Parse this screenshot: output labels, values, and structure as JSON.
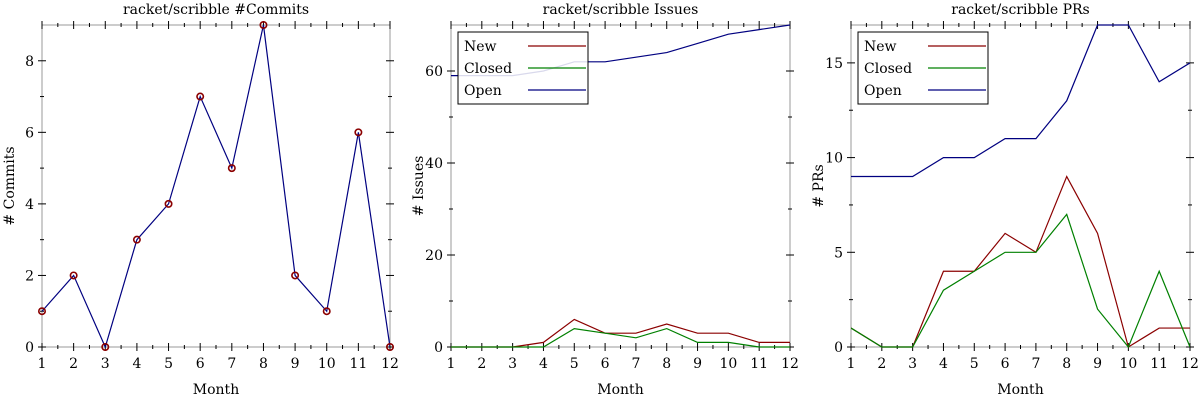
{
  "chart_data": [
    {
      "type": "line",
      "title": "racket/scribble #Commits",
      "xlabel": "Month",
      "ylabel": "# Commits",
      "x": [
        1,
        2,
        3,
        4,
        5,
        6,
        7,
        8,
        9,
        10,
        11,
        12
      ],
      "xlim": [
        1,
        12
      ],
      "ylim": [
        0,
        9
      ],
      "xticks": [
        1,
        2,
        3,
        4,
        5,
        6,
        7,
        8,
        9,
        10,
        11,
        12
      ],
      "yticks": [
        0,
        2,
        4,
        6,
        8
      ],
      "grid": false,
      "legend": null,
      "markers": true,
      "series": [
        {
          "color": "#000080",
          "marker_color": "#8b0000",
          "values": [
            1,
            2,
            0,
            3,
            4,
            7,
            5,
            9,
            2,
            1,
            6,
            0
          ]
        }
      ]
    },
    {
      "type": "line",
      "title": "racket/scribble Issues",
      "xlabel": "Month",
      "ylabel": "# Issues",
      "x": [
        1,
        2,
        3,
        4,
        5,
        6,
        7,
        8,
        9,
        10,
        11,
        12
      ],
      "xlim": [
        1,
        12
      ],
      "ylim": [
        0,
        70
      ],
      "xticks": [
        1,
        2,
        3,
        4,
        5,
        6,
        7,
        8,
        9,
        10,
        11,
        12
      ],
      "yticks": [
        0,
        20,
        40,
        60
      ],
      "grid": false,
      "legend": "top-left",
      "series": [
        {
          "name": "New",
          "color": "#8b0000",
          "values": [
            0,
            0,
            0,
            1,
            6,
            3,
            3,
            5,
            3,
            3,
            1,
            1
          ]
        },
        {
          "name": "Closed",
          "color": "#008000",
          "values": [
            0,
            0,
            0,
            0,
            4,
            3,
            2,
            4,
            1,
            1,
            0,
            0
          ]
        },
        {
          "name": "Open",
          "color": "#000080",
          "values": [
            59,
            59,
            59,
            60,
            62,
            62,
            63,
            64,
            66,
            68,
            69,
            70
          ]
        }
      ]
    },
    {
      "type": "line",
      "title": "racket/scribble PRs",
      "xlabel": "Month",
      "ylabel": "# PRs",
      "x": [
        1,
        2,
        3,
        4,
        5,
        6,
        7,
        8,
        9,
        10,
        11,
        12
      ],
      "xlim": [
        1,
        12
      ],
      "ylim": [
        0,
        17
      ],
      "xticks": [
        1,
        2,
        3,
        4,
        5,
        6,
        7,
        8,
        9,
        10,
        11,
        12
      ],
      "yticks": [
        0,
        5,
        10,
        15
      ],
      "grid": false,
      "legend": "top-left",
      "series": [
        {
          "name": "New",
          "color": "#8b0000",
          "values": [
            1,
            0,
            0,
            4,
            4,
            6,
            5,
            9,
            6,
            0,
            1,
            1
          ]
        },
        {
          "name": "Closed",
          "color": "#008000",
          "values": [
            1,
            0,
            0,
            3,
            4,
            5,
            5,
            7,
            2,
            0,
            4,
            0
          ]
        },
        {
          "name": "Open",
          "color": "#000080",
          "values": [
            9,
            9,
            9,
            10,
            10,
            11,
            11,
            13,
            17,
            17,
            14,
            15
          ]
        }
      ]
    }
  ]
}
